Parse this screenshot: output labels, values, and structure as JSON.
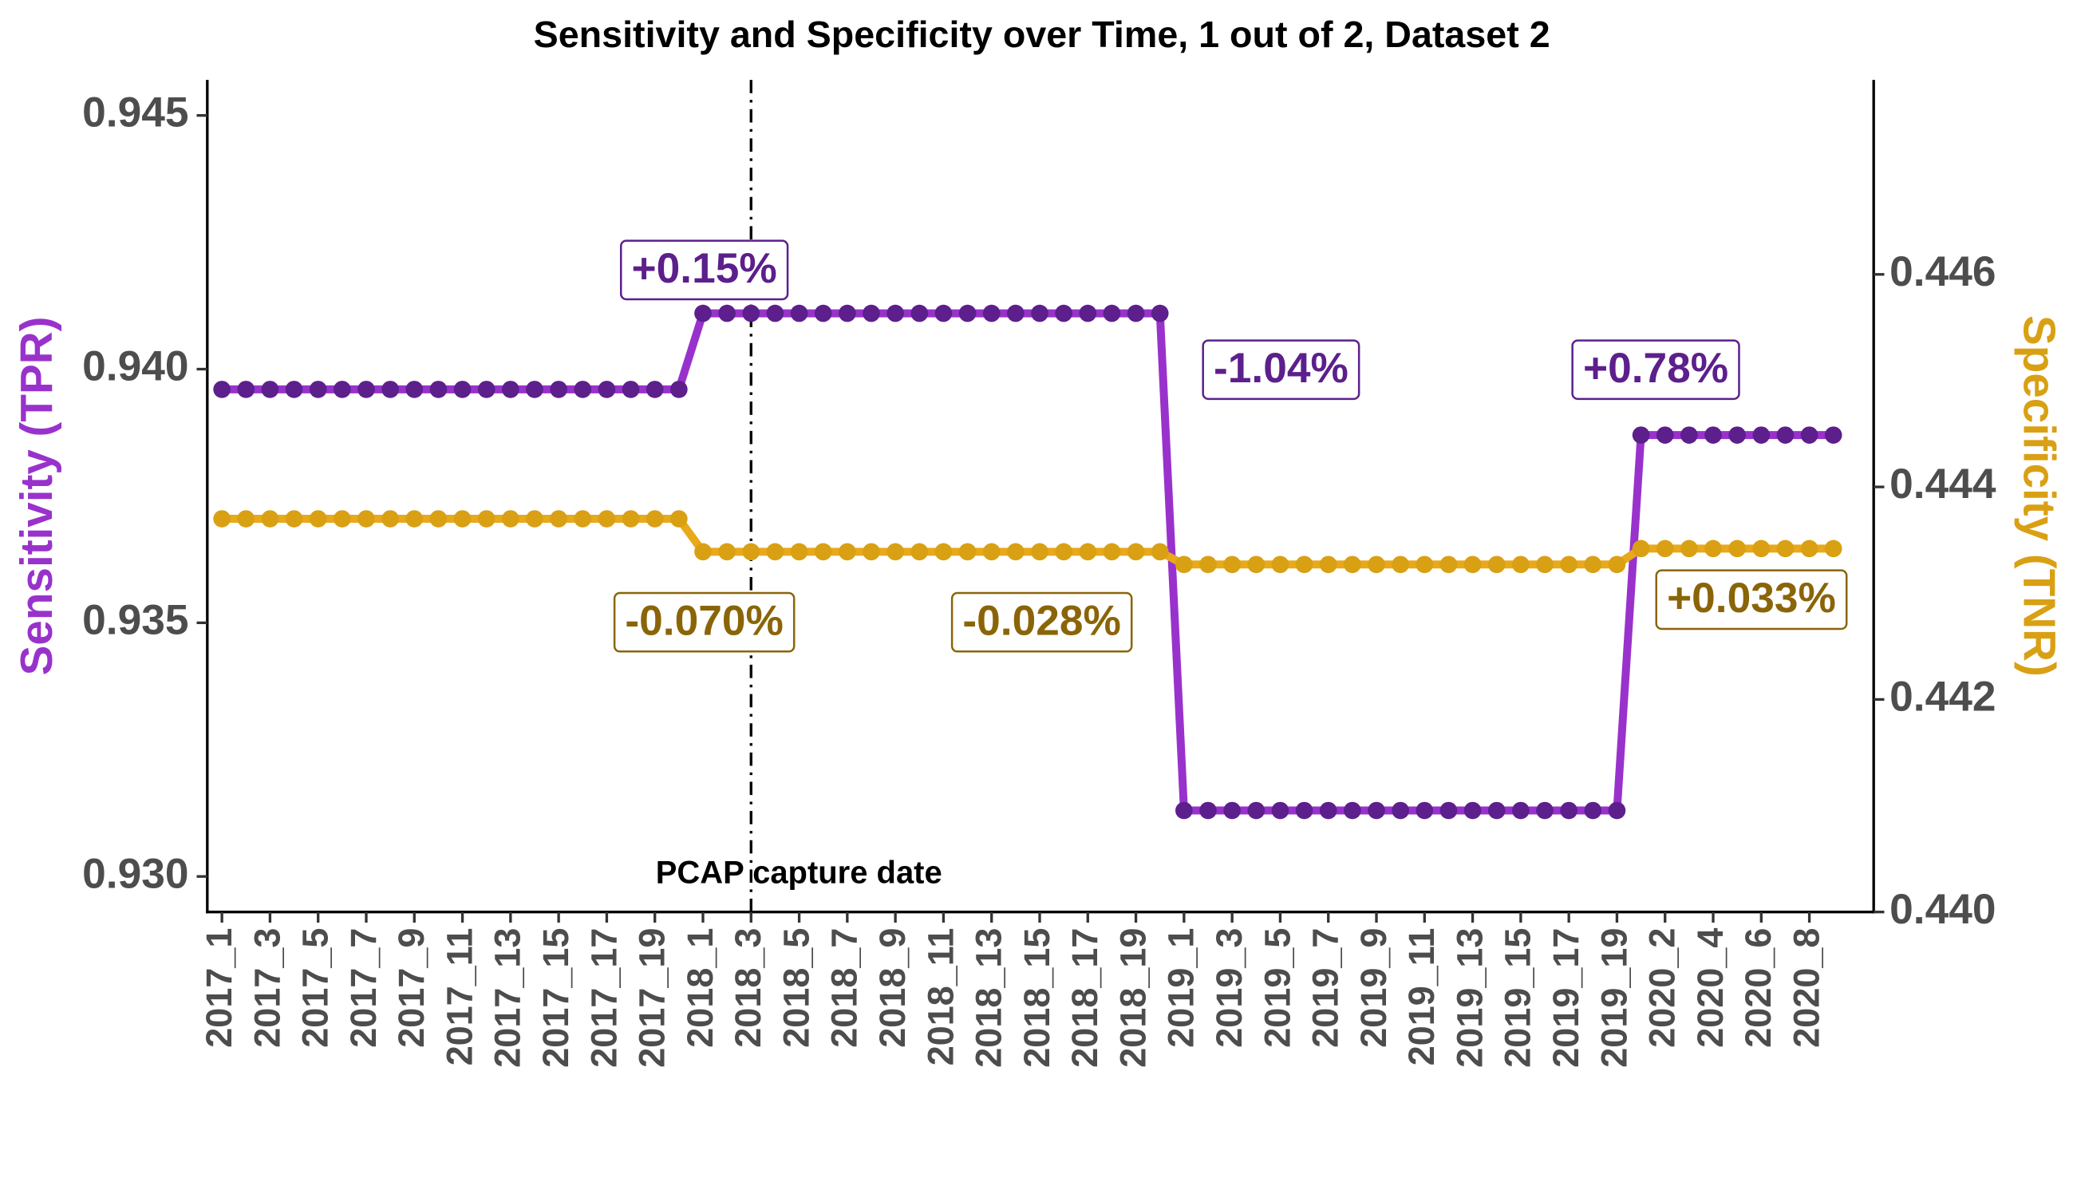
{
  "chart_data": {
    "type": "line",
    "title": "Sensitivity and Specificity over Time, 1 out of 2, Dataset 2",
    "y_label": "Sensitivity (TPR)",
    "y2_label": "Specificity (TNR)",
    "categories": [
      "2017_1",
      null,
      "2017_3",
      null,
      "2017_5",
      null,
      "2017_7",
      null,
      "2017_9",
      null,
      "2017_11",
      null,
      "2017_13",
      null,
      "2017_15",
      null,
      "2017_17",
      null,
      "2017_19",
      null,
      "2018_1",
      null,
      "2018_3",
      null,
      "2018_5",
      null,
      "2018_7",
      null,
      "2018_9",
      null,
      "2018_11",
      null,
      "2018_13",
      null,
      "2018_15",
      null,
      "2018_17",
      null,
      "2018_19",
      null,
      "2019_1",
      null,
      "2019_3",
      null,
      "2019_5",
      null,
      "2019_7",
      null,
      "2019_9",
      null,
      "2019_11",
      null,
      "2019_13",
      null,
      "2019_15",
      null,
      "2019_17",
      null,
      "2019_19",
      null,
      "2020_2",
      null,
      "2020_4",
      null,
      "2020_6",
      null,
      "2020_8",
      null
    ],
    "series": [
      {
        "name": "Sensitivity (TPR)",
        "color": "#9932cc",
        "point_color": "#5c1f8c",
        "values": [
          0.9396,
          0.9396,
          0.9396,
          0.9396,
          0.9396,
          0.9396,
          0.9396,
          0.9396,
          0.9396,
          0.9396,
          0.9396,
          0.9396,
          0.9396,
          0.9396,
          0.9396,
          0.9396,
          0.9396,
          0.9396,
          0.9396,
          0.9396,
          0.9411,
          0.9411,
          0.9411,
          0.9411,
          0.9411,
          0.9411,
          0.9411,
          0.9411,
          0.9411,
          0.9411,
          0.9411,
          0.9411,
          0.9411,
          0.9411,
          0.9411,
          0.9411,
          0.9411,
          0.9411,
          0.9411,
          0.9411,
          0.9313,
          0.9313,
          0.9313,
          0.9313,
          0.9313,
          0.9313,
          0.9313,
          0.9313,
          0.9313,
          0.9313,
          0.9313,
          0.9313,
          0.9313,
          0.9313,
          0.9313,
          0.9313,
          0.9313,
          0.9313,
          0.9313,
          0.9387,
          0.9387,
          0.9387,
          0.9387,
          0.9387,
          0.9387,
          0.9387,
          0.9387,
          0.9387
        ]
      },
      {
        "name": "Specificity (TNR)",
        "color": "#e8a91a",
        "point_color": "#d9a014",
        "axis": "y2",
        "values": [
          0.4437,
          0.4437,
          0.4437,
          0.4437,
          0.4437,
          0.4437,
          0.4437,
          0.4437,
          0.4437,
          0.4437,
          0.4437,
          0.4437,
          0.4437,
          0.4437,
          0.4437,
          0.4437,
          0.4437,
          0.4437,
          0.4437,
          0.4437,
          0.44339,
          0.44339,
          0.44339,
          0.44339,
          0.44339,
          0.44339,
          0.44339,
          0.44339,
          0.44339,
          0.44339,
          0.44339,
          0.44339,
          0.44339,
          0.44339,
          0.44339,
          0.44339,
          0.44339,
          0.44339,
          0.44339,
          0.44339,
          0.44327,
          0.44327,
          0.44327,
          0.44327,
          0.44327,
          0.44327,
          0.44327,
          0.44327,
          0.44327,
          0.44327,
          0.44327,
          0.44327,
          0.44327,
          0.44327,
          0.44327,
          0.44327,
          0.44327,
          0.44327,
          0.44327,
          0.44342,
          0.44342,
          0.44342,
          0.44342,
          0.44342,
          0.44342,
          0.44342,
          0.44342,
          0.44342
        ]
      }
    ],
    "ylim": [
      0.9293,
      0.9457
    ],
    "yticks": [
      {
        "value": 0.93,
        "label": "0.930"
      },
      0.935,
      {
        "value": 0.94,
        "label": "0.940"
      },
      0.945
    ],
    "y2lim": [
      0.44,
      0.44783
    ],
    "y2ticks": [
      {
        "value": 0.44,
        "label": "0.440"
      },
      0.442,
      0.444,
      0.446
    ],
    "annotations": [
      {
        "text": "+0.15%",
        "color": "#5c1f8c"
      },
      {
        "text": "-1.04%",
        "color": "#5c1f8c"
      },
      {
        "text": "+0.78%",
        "color": "#5c1f8c"
      },
      {
        "text": "-0.070%",
        "color": "#8a6508"
      },
      {
        "text": "-0.028%",
        "color": "#8a6508"
      },
      {
        "text": "+0.033%",
        "color": "#8a6508"
      }
    ],
    "vline_label": "PCAP capture date"
  }
}
